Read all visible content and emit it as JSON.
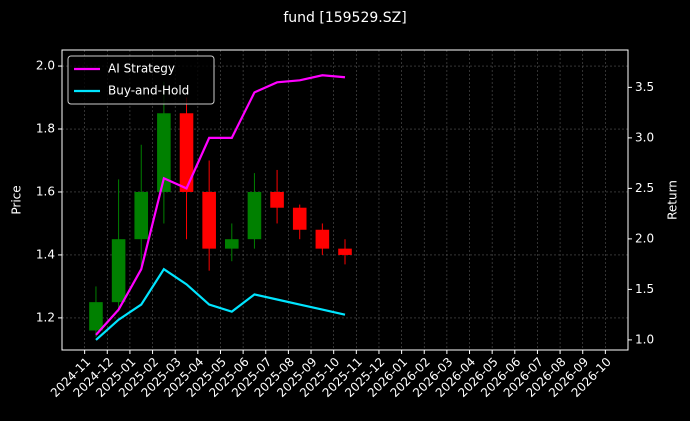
{
  "chart_data": {
    "type": "candlestick",
    "title": "fund [159529.SZ]",
    "y_label": "Price",
    "y2_label": "Return",
    "x": [
      "2024-11",
      "2024-12",
      "2025-01",
      "2025-02",
      "2025-03",
      "2025-04",
      "2025-05",
      "2025-06",
      "2025-07",
      "2025-08",
      "2025-09",
      "2025-10"
    ],
    "open": [
      1.16,
      1.25,
      1.45,
      1.6,
      1.85,
      1.6,
      1.42,
      1.45,
      1.6,
      1.55,
      1.48,
      1.42
    ],
    "high": [
      1.3,
      1.64,
      1.75,
      1.95,
      1.9,
      1.7,
      1.5,
      1.66,
      1.67,
      1.56,
      1.5,
      1.45
    ],
    "low": [
      1.14,
      1.22,
      1.35,
      1.5,
      1.45,
      1.35,
      1.38,
      1.42,
      1.5,
      1.45,
      1.4,
      1.37
    ],
    "close": [
      1.25,
      1.45,
      1.6,
      1.85,
      1.6,
      1.42,
      1.45,
      1.6,
      1.55,
      1.48,
      1.42,
      1.4
    ],
    "up_color": "#008000",
    "down_color": "#ff0000",
    "series": [
      {
        "name": "AI Strategy",
        "color": "#ff00ff",
        "axis": "y2",
        "values": [
          1.05,
          1.3,
          1.7,
          2.6,
          2.5,
          3.0,
          3.0,
          3.45,
          3.55,
          3.57,
          3.62,
          3.6
        ]
      },
      {
        "name": "Buy-and-Hold",
        "color": "#00e5ff",
        "axis": "y2",
        "values": [
          1.0,
          1.2,
          1.35,
          1.7,
          1.55,
          1.35,
          1.28,
          1.45,
          1.4,
          1.35,
          1.3,
          1.25
        ]
      }
    ],
    "xlim": [
      "2024-10",
      "2026-11"
    ],
    "xticks": [
      "2024-11",
      "2024-12",
      "2025-01",
      "2025-02",
      "2025-03",
      "2025-04",
      "2025-05",
      "2025-06",
      "2025-07",
      "2025-08",
      "2025-09",
      "2025-10",
      "2025-11",
      "2025-12",
      "2026-01",
      "2026-02",
      "2026-03",
      "2026-04",
      "2026-05",
      "2026-06",
      "2026-07",
      "2026-08",
      "2026-09",
      "2026-10"
    ],
    "ylim": [
      1.098,
      2.051
    ],
    "yticks": [
      {
        "value": 1.2,
        "label": "1.2"
      },
      {
        "value": 1.4,
        "label": "1.4"
      },
      {
        "value": 1.6,
        "label": "1.6"
      },
      {
        "value": 1.8,
        "label": "1.8"
      },
      {
        "value": 2.0,
        "label": "2.0"
      }
    ],
    "y2lim": [
      0.9,
      3.87
    ],
    "y2ticks": [
      {
        "value": 1.0,
        "label": "1.0"
      },
      {
        "value": 1.5,
        "label": "1.5"
      },
      {
        "value": 2.0,
        "label": "2.0"
      },
      {
        "value": 2.5,
        "label": "2.5"
      },
      {
        "value": 3.0,
        "label": "3.0"
      },
      {
        "value": 3.5,
        "label": "3.5"
      }
    ],
    "grid": true,
    "legend": "upper left"
  }
}
